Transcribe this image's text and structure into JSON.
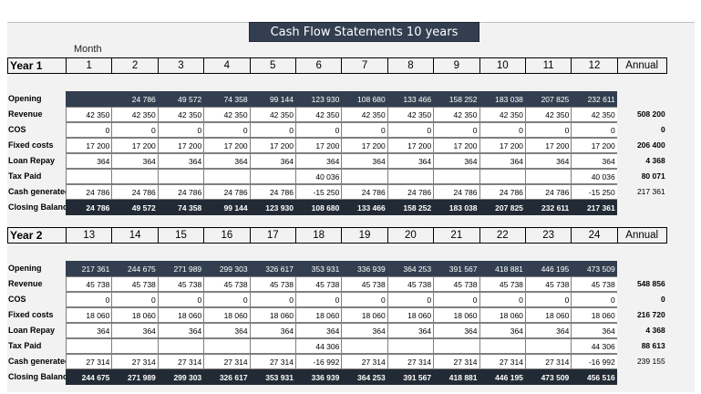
{
  "title": "Cash Flow Statements 10 years",
  "month_label": "Month",
  "annual_label": "Annual",
  "row_labels": {
    "opening": "Opening",
    "revenue": "Revenue",
    "cos": "COS",
    "fixed": "Fixed costs",
    "loan": "Loan Repay",
    "tax": "Tax Paid",
    "cash": "Cash generated",
    "closing": "Closing Balance"
  },
  "years": [
    {
      "label": "Year 1",
      "months": [
        "1",
        "2",
        "3",
        "4",
        "5",
        "6",
        "7",
        "8",
        "9",
        "10",
        "11",
        "12"
      ],
      "opening": [
        "",
        "24 786",
        "49 572",
        "74 358",
        "99 144",
        "123 930",
        "108 680",
        "133 466",
        "158 252",
        "183 038",
        "207 825",
        "232 611"
      ],
      "revenue": [
        "42 350",
        "42 350",
        "42 350",
        "42 350",
        "42 350",
        "42 350",
        "42 350",
        "42 350",
        "42 350",
        "42 350",
        "42 350",
        "42 350"
      ],
      "revenue_total": "508 200",
      "cos": [
        "0",
        "0",
        "0",
        "0",
        "0",
        "0",
        "0",
        "0",
        "0",
        "0",
        "0",
        "0"
      ],
      "cos_total": "0",
      "fixed": [
        "17 200",
        "17 200",
        "17 200",
        "17 200",
        "17 200",
        "17 200",
        "17 200",
        "17 200",
        "17 200",
        "17 200",
        "17 200",
        "17 200"
      ],
      "fixed_total": "206 400",
      "loan": [
        "364",
        "364",
        "364",
        "364",
        "364",
        "364",
        "364",
        "364",
        "364",
        "364",
        "364",
        "364"
      ],
      "loan_total": "4 368",
      "tax": [
        "",
        "",
        "",
        "",
        "",
        "40 036",
        "",
        "",
        "",
        "",
        "",
        "40 036"
      ],
      "tax_total": "80 071",
      "cash": [
        "24 786",
        "24 786",
        "24 786",
        "24 786",
        "24 786",
        "-15 250",
        "24 786",
        "24 786",
        "24 786",
        "24 786",
        "24 786",
        "-15 250"
      ],
      "cash_total": "217 361",
      "closing": [
        "24 786",
        "49 572",
        "74 358",
        "99 144",
        "123 930",
        "108 680",
        "133 466",
        "158 252",
        "183 038",
        "207 825",
        "232 611",
        "217 361"
      ]
    },
    {
      "label": "Year 2",
      "months": [
        "13",
        "14",
        "15",
        "16",
        "17",
        "18",
        "19",
        "20",
        "21",
        "22",
        "23",
        "24"
      ],
      "opening": [
        "217 361",
        "244 675",
        "271 989",
        "299 303",
        "326 617",
        "353 931",
        "336 939",
        "364 253",
        "391 567",
        "418 881",
        "446 195",
        "473 509"
      ],
      "revenue": [
        "45 738",
        "45 738",
        "45 738",
        "45 738",
        "45 738",
        "45 738",
        "45 738",
        "45 738",
        "45 738",
        "45 738",
        "45 738",
        "45 738"
      ],
      "revenue_total": "548 856",
      "cos": [
        "0",
        "0",
        "0",
        "0",
        "0",
        "0",
        "0",
        "0",
        "0",
        "0",
        "0",
        "0"
      ],
      "cos_total": "0",
      "fixed": [
        "18 060",
        "18 060",
        "18 060",
        "18 060",
        "18 060",
        "18 060",
        "18 060",
        "18 060",
        "18 060",
        "18 060",
        "18 060",
        "18 060"
      ],
      "fixed_total": "216 720",
      "loan": [
        "364",
        "364",
        "364",
        "364",
        "364",
        "364",
        "364",
        "364",
        "364",
        "364",
        "364",
        "364"
      ],
      "loan_total": "4 368",
      "tax": [
        "",
        "",
        "",
        "",
        "",
        "44 306",
        "",
        "",
        "",
        "",
        "",
        "44 306"
      ],
      "tax_total": "88 613",
      "cash": [
        "27 314",
        "27 314",
        "27 314",
        "27 314",
        "27 314",
        "-16 992",
        "27 314",
        "27 314",
        "27 314",
        "27 314",
        "27 314",
        "-16 992"
      ],
      "cash_total": "239 155",
      "closing": [
        "244 675",
        "271 989",
        "299 303",
        "326 617",
        "353 931",
        "336 939",
        "364 253",
        "391 567",
        "418 881",
        "446 195",
        "473 509",
        "456 516"
      ]
    }
  ]
}
